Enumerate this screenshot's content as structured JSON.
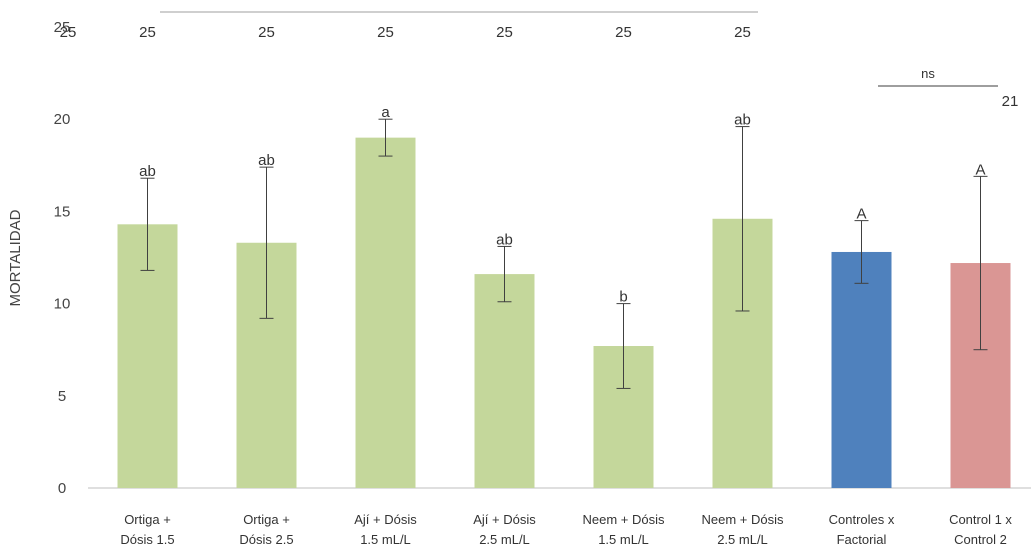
{
  "chart_data": {
    "type": "bar",
    "ylabel": "MORTALIDAD",
    "ylim": [
      0,
      25
    ],
    "yticks": [
      "0",
      "5",
      "10",
      "15",
      "20",
      "25"
    ],
    "categories": [
      [
        "Ortiga +",
        "Dósis 1.5"
      ],
      [
        "Ortiga +",
        "Dósis 2.5"
      ],
      [
        "Ají + Dósis",
        "1.5 mL/L"
      ],
      [
        "Ají + Dósis",
        "2.5 mL/L"
      ],
      [
        "Neem + Dósis",
        "1.5 mL/L"
      ],
      [
        "Neem + Dósis",
        "2.5 mL/L"
      ],
      [
        "Controles x",
        "Factorial"
      ],
      [
        "Control 1 x",
        "Control 2"
      ]
    ],
    "values": [
      14.3,
      13.3,
      19.0,
      11.6,
      7.7,
      14.6,
      12.8,
      12.2
    ],
    "error": [
      2.5,
      4.1,
      1.0,
      1.5,
      2.3,
      5.0,
      1.7,
      4.7
    ],
    "significance": [
      "ab",
      "ab",
      "a",
      "ab",
      "b",
      "ab",
      "A",
      "A"
    ],
    "colors": [
      "#c4d79b",
      "#c4d79b",
      "#c4d79b",
      "#c4d79b",
      "#c4d79b",
      "#c4d79b",
      "#4f81bd",
      "#da9694"
    ],
    "top_labels": [
      "25",
      "25",
      "25",
      "25",
      "25",
      "25"
    ],
    "top_left_label": "25",
    "ns_label": "ns",
    "ns_value": "21",
    "grid": false
  }
}
